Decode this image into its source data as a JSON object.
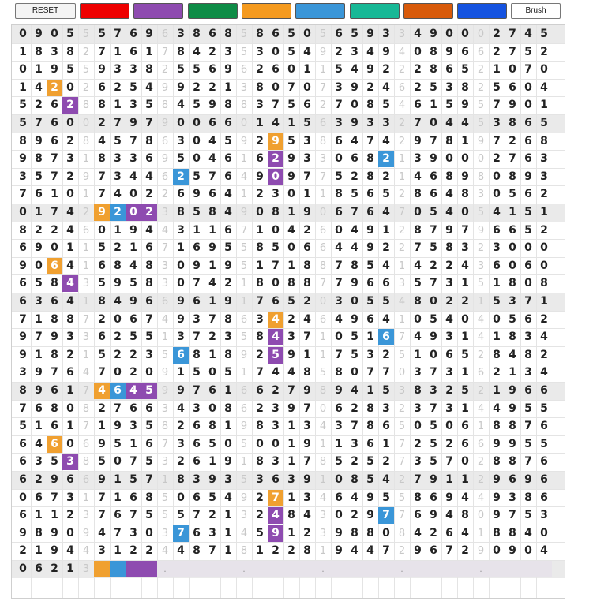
{
  "toolbar": {
    "reset_label": "RESET",
    "brush_label": "Brush",
    "swatches": [
      {
        "name": "red",
        "color": "#ee0000"
      },
      {
        "name": "purple",
        "color": "#8e4bb0"
      },
      {
        "name": "green",
        "color": "#0e8c46"
      },
      {
        "name": "orange",
        "color": "#f59a1e"
      },
      {
        "name": "blue",
        "color": "#3a96d8"
      },
      {
        "name": "teal",
        "color": "#17b896"
      },
      {
        "name": "dark-orange",
        "color": "#d85a0a"
      },
      {
        "name": "royal-blue",
        "color": "#1553e0"
      }
    ]
  },
  "palette": {
    "O": "#f0a030",
    "P": "#8e4bb0",
    "B": "#3a96d8"
  },
  "grid": {
    "rows": [
      "0905557696386858650565933490002745",
      "1838271617842353054923494089662752",
      "0195593382556962601154922286521070",
      "1420262549922138070739246253825604",
      "5262881358459883756270854615957901",
      "5760027979006601415639332704453865",
      "8962845786304592953864742978197268",
      "9873183369504616293306821390002763",
      "3572973446257649097752821468980893",
      "7610174022696412301185652864830562",
      "0174292023858490819067647054054151",
      "8224601944311671042604912879796652",
      "6901152167169558506644922758323000",
      "9064168483091951718878541422436060",
      "6584359583074218088779663573151808",
      "6364184966961917652030554802215371",
      "7188720674937863424649641054040562",
      "9793362551372358437105167493141834",
      "9182152235681892591175325106528482",
      "3976470209150517448580770373162134",
      "8961746459976166279894153832521966",
      "7680827663430862397062832373144955",
      "5161719358268198313437865050618876",
      "6460695167365050019113617252669955",
      "6353850753261918317852527357028876",
      "6296691571839353639108542791129696",
      "0673171685065492713464955869449386",
      "6112376755572132484302977694809753",
      "9890947303763145912398808426418840",
      "2194431224487181228194472967290904",
      "062130000000000000000000000000000"
    ],
    "last_row": "0621",
    "painted": [
      {
        "r": 3,
        "c": 2,
        "col": "O"
      },
      {
        "r": 4,
        "c": 3,
        "col": "P"
      },
      {
        "r": 6,
        "c": 16,
        "col": "O"
      },
      {
        "r": 7,
        "c": 16,
        "col": "P"
      },
      {
        "r": 7,
        "c": 23,
        "col": "B"
      },
      {
        "r": 8,
        "c": 10,
        "col": "B"
      },
      {
        "r": 8,
        "c": 16,
        "col": "P"
      },
      {
        "r": 10,
        "c": 5,
        "col": "O"
      },
      {
        "r": 10,
        "c": 6,
        "col": "B"
      },
      {
        "r": 10,
        "c": 7,
        "col": "P"
      },
      {
        "r": 10,
        "c": 8,
        "col": "P"
      },
      {
        "r": 13,
        "c": 2,
        "col": "O"
      },
      {
        "r": 14,
        "c": 3,
        "col": "P"
      },
      {
        "r": 16,
        "c": 16,
        "col": "O"
      },
      {
        "r": 17,
        "c": 16,
        "col": "P"
      },
      {
        "r": 17,
        "c": 23,
        "col": "B"
      },
      {
        "r": 18,
        "c": 10,
        "col": "B"
      },
      {
        "r": 18,
        "c": 16,
        "col": "P"
      },
      {
        "r": 20,
        "c": 5,
        "col": "O"
      },
      {
        "r": 20,
        "c": 6,
        "col": "B"
      },
      {
        "r": 20,
        "c": 7,
        "col": "P"
      },
      {
        "r": 20,
        "c": 8,
        "col": "P"
      },
      {
        "r": 23,
        "c": 2,
        "col": "O"
      },
      {
        "r": 24,
        "c": 3,
        "col": "P"
      },
      {
        "r": 26,
        "c": 16,
        "col": "O"
      },
      {
        "r": 27,
        "c": 16,
        "col": "P"
      },
      {
        "r": 27,
        "c": 23,
        "col": "B"
      },
      {
        "r": 28,
        "c": 10,
        "col": "B"
      },
      {
        "r": 28,
        "c": 16,
        "col": "P"
      }
    ],
    "last_row_blocks": [
      "O",
      "B",
      "P",
      "P"
    ],
    "dot_label": "."
  }
}
